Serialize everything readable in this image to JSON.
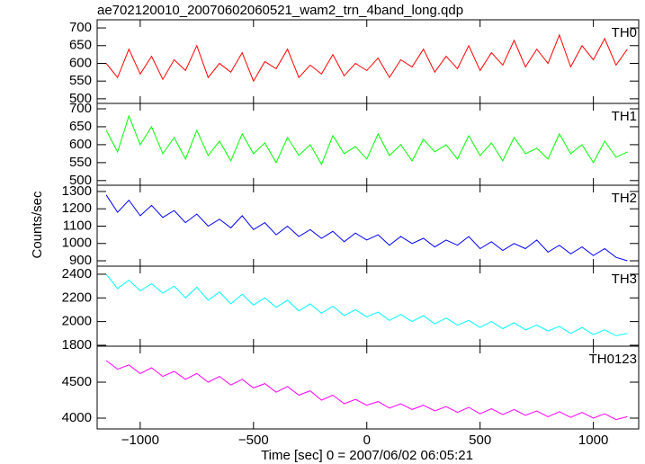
{
  "chart_data": {
    "type": "line",
    "title": "ae702120010_20070602060521_wam2_trn_4band_long.qdp",
    "xlabel": "Time [sec] 0 = 2007/06/02 06:05:21",
    "ylabel": "Counts/sec",
    "xlim": [
      -1190,
      1200
    ],
    "xticks": [
      {
        "value": -1000,
        "label": "−1000"
      },
      {
        "value": -500,
        "label": "−500"
      },
      0,
      500,
      1000
    ],
    "x": [
      -1150,
      -1100,
      -1050,
      -1000,
      -950,
      -900,
      -850,
      -800,
      -750,
      -700,
      -650,
      -600,
      -550,
      -500,
      -450,
      -400,
      -350,
      -300,
      -250,
      -200,
      -150,
      -100,
      -50,
      0,
      50,
      100,
      150,
      200,
      250,
      300,
      350,
      400,
      450,
      500,
      550,
      600,
      650,
      700,
      750,
      800,
      850,
      900,
      950,
      1000,
      1050,
      1100,
      1150
    ],
    "panels": [
      {
        "name": "TH0",
        "color": "#ff0000",
        "ylim": [
          487,
          723
        ],
        "yticks": [
          500,
          550,
          600,
          650,
          700
        ],
        "values": [
          600,
          560,
          640,
          570,
          620,
          555,
          610,
          580,
          650,
          560,
          600,
          575,
          630,
          550,
          605,
          585,
          640,
          560,
          595,
          570,
          625,
          565,
          600,
          580,
          615,
          560,
          610,
          590,
          640,
          575,
          620,
          585,
          650,
          580,
          630,
          595,
          665,
          590,
          640,
          600,
          680,
          590,
          650,
          610,
          670,
          595,
          640
        ]
      },
      {
        "name": "TH1",
        "color": "#00ff00",
        "ylim": [
          487,
          715
        ],
        "yticks": [
          500,
          550,
          600,
          650,
          700
        ],
        "values": [
          640,
          580,
          680,
          600,
          650,
          575,
          620,
          560,
          640,
          570,
          610,
          555,
          630,
          575,
          605,
          550,
          620,
          570,
          600,
          545,
          625,
          575,
          595,
          560,
          630,
          570,
          600,
          555,
          615,
          580,
          600,
          560,
          625,
          570,
          605,
          555,
          620,
          575,
          590,
          560,
          630,
          575,
          600,
          550,
          610,
          565,
          580
        ]
      },
      {
        "name": "TH2",
        "color": "#0000ff",
        "ylim": [
          869,
          1336
        ],
        "yticks": [
          900,
          1000,
          1100,
          1200,
          1300
        ],
        "values": [
          1280,
          1180,
          1250,
          1160,
          1220,
          1150,
          1190,
          1120,
          1170,
          1100,
          1140,
          1090,
          1160,
          1080,
          1120,
          1050,
          1100,
          1040,
          1080,
          1030,
          1070,
          1010,
          1060,
          1020,
          1050,
          990,
          1040,
          1000,
          1030,
          980,
          1020,
          990,
          1040,
          970,
          1010,
          960,
          1000,
          970,
          1020,
          950,
          990,
          940,
          980,
          930,
          970,
          920,
          900
        ]
      },
      {
        "name": "TH3",
        "color": "#00ffff",
        "ylim": [
          1792,
          2468
        ],
        "yticks": [
          1800,
          2000,
          2200,
          2400
        ],
        "values": [
          2400,
          2280,
          2350,
          2260,
          2320,
          2240,
          2300,
          2200,
          2290,
          2180,
          2250,
          2150,
          2230,
          2140,
          2200,
          2120,
          2180,
          2090,
          2150,
          2070,
          2130,
          2050,
          2100,
          2040,
          2080,
          2010,
          2060,
          2000,
          2050,
          1980,
          2030,
          1970,
          2010,
          1950,
          2000,
          1940,
          1990,
          1930,
          1970,
          1920,
          1960,
          1900,
          1950,
          1890,
          1930,
          1880,
          1900
        ]
      },
      {
        "name": "TH0123",
        "color": "#ff00ff",
        "ylim": [
          3850,
          5000
        ],
        "yticks": [
          4000,
          4500
        ],
        "values": [
          4800,
          4680,
          4740,
          4620,
          4700,
          4580,
          4650,
          4540,
          4620,
          4500,
          4580,
          4460,
          4540,
          4420,
          4480,
          4360,
          4440,
          4320,
          4380,
          4250,
          4320,
          4200,
          4260,
          4180,
          4230,
          4140,
          4200,
          4120,
          4180,
          4100,
          4160,
          4080,
          4150,
          4060,
          4130,
          4050,
          4120,
          4040,
          4100,
          4020,
          4090,
          4010,
          4080,
          4000,
          4060,
          3980,
          4020
        ]
      }
    ]
  }
}
